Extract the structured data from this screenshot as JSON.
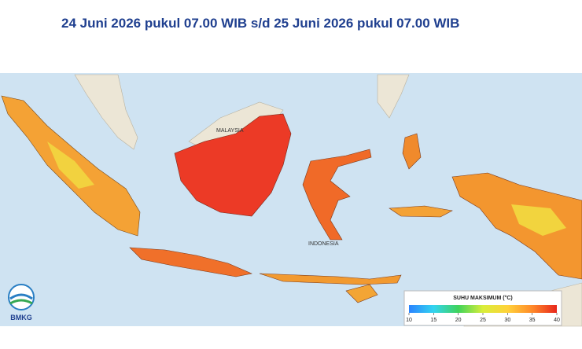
{
  "header": {
    "title": "24 Juni 2026 pukul 07.00 WIB s/d 25 Juni 2026 pukul 07.00 WIB"
  },
  "map": {
    "labels": [
      "MALAYSIA",
      "INDONESIA"
    ],
    "legend": {
      "title": "SUHU MAKSIMUM (°C)",
      "range": [
        10,
        40
      ],
      "ticks": [
        10,
        15,
        20,
        25,
        30,
        35,
        40
      ],
      "colors": [
        "#2b83ff",
        "#33d4f0",
        "#3fd35a",
        "#d9ee3a",
        "#ffd23a",
        "#ff8a2a",
        "#e8261c"
      ]
    }
  },
  "logo": {
    "text": "BMKG"
  }
}
